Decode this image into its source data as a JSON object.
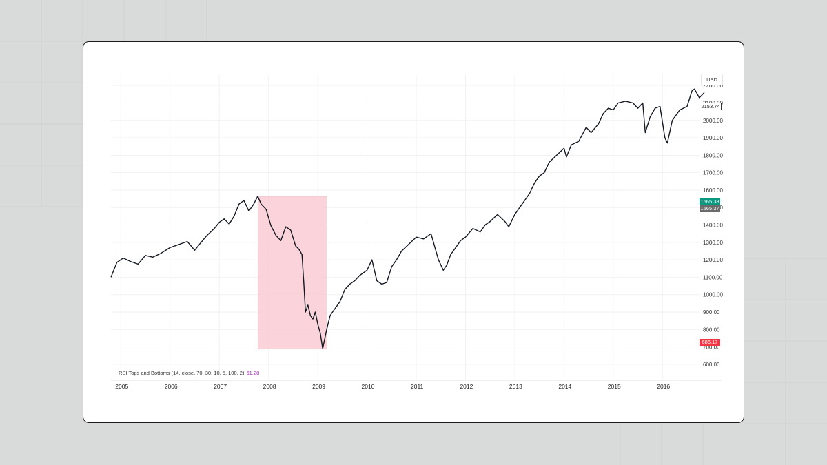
{
  "chart_data": {
    "type": "line",
    "title": "",
    "xlabel": "",
    "ylabel": "",
    "currency": "USD",
    "x_ticks": [
      "2005",
      "2006",
      "2007",
      "2008",
      "2009",
      "2010",
      "2011",
      "2012",
      "2013",
      "2014",
      "2015",
      "2016"
    ],
    "y_ticks": [
      "600.00",
      "700.00",
      "800.00",
      "900.00",
      "1000.00",
      "1100.00",
      "1200.00",
      "1300.00",
      "1400.00",
      "1500.00",
      "1600.00",
      "1700.00",
      "1800.00",
      "1900.00",
      "2000.00",
      "2100.00",
      "2200.00"
    ],
    "ylim": [
      560,
      2260
    ],
    "xlim": [
      2004.8,
      2017.2
    ],
    "series": [
      {
        "color": "#131722",
        "x": [
          2004.8,
          2004.92,
          2005.05,
          2005.2,
          2005.35,
          2005.5,
          2005.65,
          2005.8,
          2006.0,
          2006.2,
          2006.35,
          2006.5,
          2006.6,
          2006.75,
          2006.9,
          2007.0,
          2007.1,
          2007.2,
          2007.3,
          2007.4,
          2007.5,
          2007.6,
          2007.7,
          2007.78,
          2007.85,
          2007.95,
          2008.05,
          2008.15,
          2008.25,
          2008.35,
          2008.45,
          2008.55,
          2008.62,
          2008.68,
          2008.72,
          2008.75,
          2008.8,
          2008.85,
          2008.9,
          2008.95,
          2009.0,
          2009.05,
          2009.1,
          2009.18,
          2009.25,
          2009.35,
          2009.45,
          2009.55,
          2009.65,
          2009.75,
          2009.85,
          2010.0,
          2010.1,
          2010.2,
          2010.3,
          2010.4,
          2010.5,
          2010.6,
          2010.7,
          2010.85,
          2011.0,
          2011.15,
          2011.3,
          2011.45,
          2011.55,
          2011.62,
          2011.7,
          2011.8,
          2011.9,
          2012.0,
          2012.15,
          2012.3,
          2012.4,
          2012.5,
          2012.65,
          2012.8,
          2012.88,
          2013.0,
          2013.15,
          2013.3,
          2013.4,
          2013.5,
          2013.6,
          2013.7,
          2013.85,
          2014.0,
          2014.05,
          2014.15,
          2014.3,
          2014.45,
          2014.55,
          2014.7,
          2014.8,
          2014.9,
          2015.0,
          2015.1,
          2015.25,
          2015.4,
          2015.5,
          2015.6,
          2015.65,
          2015.75,
          2015.85,
          2015.95,
          2016.05,
          2016.1,
          2016.2,
          2016.35,
          2016.5,
          2016.6,
          2016.65,
          2016.75,
          2016.85
        ],
        "y": [
          1100,
          1185,
          1210,
          1190,
          1175,
          1225,
          1215,
          1235,
          1270,
          1290,
          1305,
          1255,
          1290,
          1340,
          1380,
          1415,
          1435,
          1405,
          1450,
          1520,
          1540,
          1480,
          1520,
          1565,
          1520,
          1490,
          1395,
          1340,
          1310,
          1390,
          1370,
          1280,
          1260,
          1230,
          1050,
          900,
          940,
          880,
          860,
          900,
          830,
          780,
          690,
          800,
          880,
          920,
          960,
          1030,
          1060,
          1080,
          1110,
          1140,
          1200,
          1080,
          1060,
          1070,
          1160,
          1200,
          1250,
          1290,
          1330,
          1320,
          1350,
          1200,
          1140,
          1170,
          1230,
          1270,
          1310,
          1330,
          1380,
          1360,
          1400,
          1420,
          1460,
          1420,
          1390,
          1460,
          1520,
          1580,
          1640,
          1680,
          1700,
          1760,
          1800,
          1840,
          1790,
          1860,
          1880,
          1960,
          1930,
          1980,
          2040,
          2070,
          2060,
          2100,
          2110,
          2100,
          2070,
          2100,
          1930,
          2020,
          2070,
          2080,
          1900,
          1870,
          2000,
          2060,
          2080,
          2170,
          2180,
          2130,
          2160
        ]
      }
    ],
    "shaded_region": {
      "x_start": 2007.78,
      "x_end": 2009.18,
      "y_low": 686.17,
      "y_high": 1565.38
    },
    "price_tags": {
      "last": "2153.74",
      "high": "1565.38",
      "high_alt": "1565.37",
      "low": "686.17"
    },
    "indicator": {
      "label": "RSI Tops and Bottoms (14, close, 70, 30, 10, 5, 100, 2)",
      "value": "61.28"
    }
  }
}
